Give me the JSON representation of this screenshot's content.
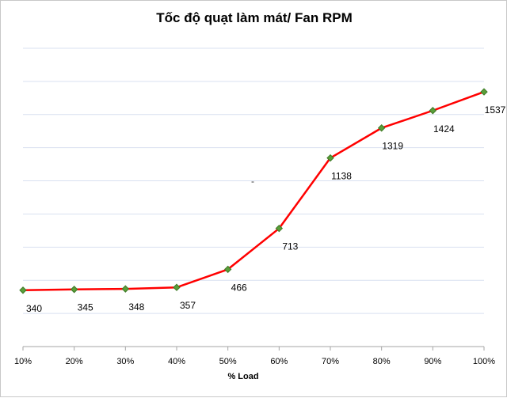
{
  "chart_data": {
    "type": "line",
    "title": "Tốc độ quạt làm mát/ Fan RPM",
    "xlabel": "% Load",
    "ylabel": "",
    "categories": [
      "10%",
      "20%",
      "30%",
      "40%",
      "50%",
      "60%",
      "70%",
      "80%",
      "90%",
      "100%"
    ],
    "series": [
      {
        "name": "",
        "values": [
          340,
          345,
          348,
          357,
          466,
          713,
          1138,
          1319,
          1424,
          1537
        ]
      }
    ],
    "data_labels": [
      "340",
      "345",
      "348",
      "357",
      "466",
      "713",
      "1138",
      "1319",
      "1424",
      "1537"
    ],
    "ylim": [
      0,
      1800
    ],
    "grid": true,
    "legend": "none",
    "annotations": [
      "-"
    ],
    "colors": {
      "line": "#ff0000",
      "marker_fill": "#5a9e3a",
      "marker_stroke": "#3d7a25",
      "grid": "#d9e1f0"
    }
  }
}
